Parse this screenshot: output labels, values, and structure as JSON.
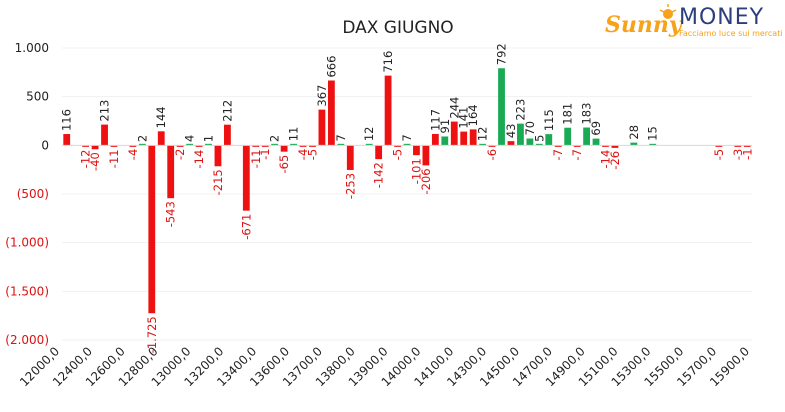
{
  "chart_data": {
    "type": "bar",
    "title": "DAX GIUGNO",
    "ylim": [
      -2000,
      1000
    ],
    "yticks": [
      {
        "value": 1000,
        "label": "1.000"
      },
      {
        "value": 500,
        "label": "500"
      },
      {
        "value": 0,
        "label": "0"
      },
      {
        "value": -500,
        "label": "(500)"
      },
      {
        "value": -1000,
        "label": "(1.000)"
      },
      {
        "value": -1500,
        "label": "(1.500)"
      },
      {
        "value": -2000,
        "label": "(2.000)"
      }
    ],
    "x_tick_labels": [
      "12000,0",
      "12400,0",
      "12600,0",
      "12800,0",
      "13000,0",
      "13200,0",
      "13400,0",
      "13600,0",
      "13700,0",
      "13800,0",
      "13900,0",
      "14000,0",
      "14100,0",
      "14300,0",
      "14500,0",
      "14700,0",
      "14900,0",
      "15100,0",
      "15300,0",
      "15500,0",
      "15700,0",
      "15900,0"
    ],
    "grid": true,
    "legend": "none",
    "series": [
      {
        "color": "#ee1111",
        "values": [
          116,
          -12,
          -40,
          213,
          -11,
          -4,
          -1725,
          144,
          -543,
          -2,
          -14,
          -215,
          212,
          -671,
          -11,
          -1,
          -65,
          -4,
          -5,
          367,
          666,
          -253,
          -142,
          716,
          -5,
          -101,
          -206,
          117,
          244,
          141,
          164,
          -6,
          43,
          -7,
          -7,
          -14,
          -26,
          -5,
          -3,
          -1
        ]
      },
      {
        "color": "#1aaa55",
        "values": [
          2,
          4,
          1,
          2,
          11,
          7,
          12,
          7,
          91,
          12,
          792,
          223,
          70,
          5,
          115,
          181,
          183,
          69,
          28,
          15
        ]
      }
    ],
    "bars": [
      {
        "slot": 0,
        "s": 0,
        "i": 0
      },
      {
        "slot": 2,
        "s": 0,
        "i": 1
      },
      {
        "slot": 3,
        "s": 0,
        "i": 2
      },
      {
        "slot": 4,
        "s": 0,
        "i": 3
      },
      {
        "slot": 5,
        "s": 0,
        "i": 4
      },
      {
        "slot": 7,
        "s": 0,
        "i": 5
      },
      {
        "slot": 8,
        "s": 1,
        "i": 0
      },
      {
        "slot": 9,
        "s": 0,
        "i": 6
      },
      {
        "slot": 10,
        "s": 0,
        "i": 7
      },
      {
        "slot": 11,
        "s": 0,
        "i": 8
      },
      {
        "slot": 12,
        "s": 0,
        "i": 9
      },
      {
        "slot": 13,
        "s": 1,
        "i": 1
      },
      {
        "slot": 14,
        "s": 0,
        "i": 10
      },
      {
        "slot": 15,
        "s": 1,
        "i": 2
      },
      {
        "slot": 16,
        "s": 0,
        "i": 11
      },
      {
        "slot": 17,
        "s": 0,
        "i": 12
      },
      {
        "slot": 19,
        "s": 0,
        "i": 13
      },
      {
        "slot": 20,
        "s": 0,
        "i": 14
      },
      {
        "slot": 21,
        "s": 0,
        "i": 15
      },
      {
        "slot": 22,
        "s": 1,
        "i": 3
      },
      {
        "slot": 23,
        "s": 0,
        "i": 16
      },
      {
        "slot": 24,
        "s": 1,
        "i": 4
      },
      {
        "slot": 25,
        "s": 0,
        "i": 17
      },
      {
        "slot": 26,
        "s": 0,
        "i": 18
      },
      {
        "slot": 27,
        "s": 0,
        "i": 19
      },
      {
        "slot": 28,
        "s": 0,
        "i": 20
      },
      {
        "slot": 29,
        "s": 1,
        "i": 5
      },
      {
        "slot": 30,
        "s": 0,
        "i": 21
      },
      {
        "slot": 32,
        "s": 1,
        "i": 6
      },
      {
        "slot": 33,
        "s": 0,
        "i": 22
      },
      {
        "slot": 34,
        "s": 0,
        "i": 23
      },
      {
        "slot": 35,
        "s": 0,
        "i": 24
      },
      {
        "slot": 36,
        "s": 1,
        "i": 7
      },
      {
        "slot": 37,
        "s": 0,
        "i": 25
      },
      {
        "slot": 38,
        "s": 0,
        "i": 26
      },
      {
        "slot": 39,
        "s": 0,
        "i": 27
      },
      {
        "slot": 40,
        "s": 1,
        "i": 8
      },
      {
        "slot": 41,
        "s": 0,
        "i": 28
      },
      {
        "slot": 42,
        "s": 0,
        "i": 29
      },
      {
        "slot": 43,
        "s": 0,
        "i": 30
      },
      {
        "slot": 44,
        "s": 1,
        "i": 9
      },
      {
        "slot": 45,
        "s": 0,
        "i": 31
      },
      {
        "slot": 46,
        "s": 1,
        "i": 10
      },
      {
        "slot": 47,
        "s": 0,
        "i": 32
      },
      {
        "slot": 48,
        "s": 1,
        "i": 11
      },
      {
        "slot": 49,
        "s": 1,
        "i": 12
      },
      {
        "slot": 50,
        "s": 1,
        "i": 13
      },
      {
        "slot": 51,
        "s": 1,
        "i": 14
      },
      {
        "slot": 52,
        "s": 0,
        "i": 33
      },
      {
        "slot": 53,
        "s": 1,
        "i": 15
      },
      {
        "slot": 54,
        "s": 0,
        "i": 34
      },
      {
        "slot": 55,
        "s": 1,
        "i": 16
      },
      {
        "slot": 56,
        "s": 1,
        "i": 17
      },
      {
        "slot": 57,
        "s": 0,
        "i": 35
      },
      {
        "slot": 58,
        "s": 0,
        "i": 36
      },
      {
        "slot": 60,
        "s": 1,
        "i": 18
      },
      {
        "slot": 62,
        "s": 1,
        "i": 19
      },
      {
        "slot": 69,
        "s": 0,
        "i": 37
      },
      {
        "slot": 71,
        "s": 0,
        "i": 38
      },
      {
        "slot": 72,
        "s": 0,
        "i": 39
      }
    ]
  },
  "brand": {
    "name_part1": "Sunny",
    "name_part2": "MONEY",
    "tagline": "Facciamo luce sui mercati",
    "color_primary": "#f6a21a",
    "color_secondary": "#2b3f7c"
  }
}
